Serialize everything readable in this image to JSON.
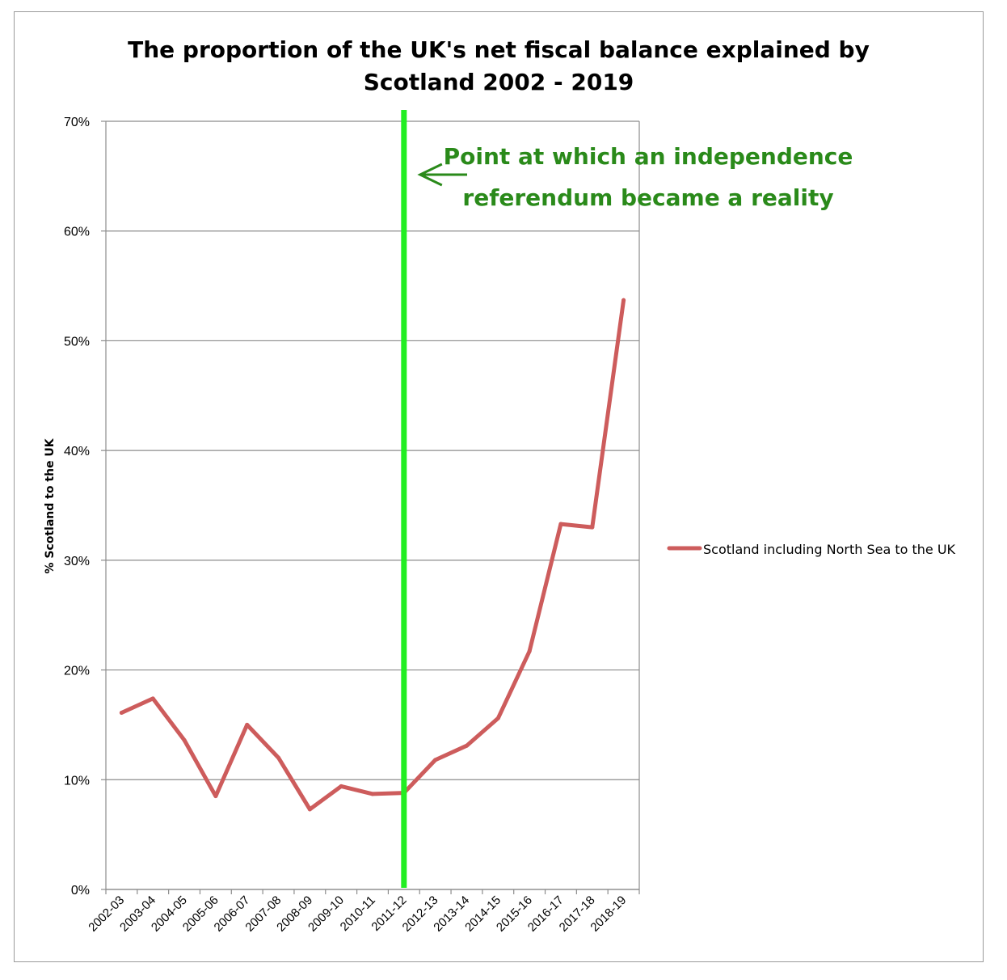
{
  "chart_data": {
    "type": "line",
    "title_lines": [
      "The proportion of the UK's net fiscal balance explained by",
      "Scotland 2002 - 2019"
    ],
    "xlabel": "",
    "ylabel": "% Scotland to the UK",
    "ylim": [
      0,
      70
    ],
    "yticks": [
      "0%",
      "10%",
      "20%",
      "30%",
      "40%",
      "50%",
      "60%",
      "70%"
    ],
    "ytick_values": [
      0,
      10,
      20,
      30,
      40,
      50,
      60,
      70
    ],
    "grid": true,
    "legend_position": "right",
    "categories": [
      "2002-03",
      "2003-04",
      "2004-05",
      "2005-06",
      "2006-07",
      "2007-08",
      "2008-09",
      "2009-10",
      "2010-11",
      "2011-12",
      "2012-13",
      "2013-14",
      "2014-15",
      "2015-16",
      "2016-17",
      "2017-18",
      "2018-19"
    ],
    "series": [
      {
        "name": "Scotland including North Sea to the UK",
        "color": "#cd5c5c",
        "values": [
          16.1,
          17.4,
          13.6,
          8.5,
          15.0,
          12.0,
          7.3,
          9.4,
          8.7,
          8.8,
          11.8,
          13.1,
          15.6,
          21.7,
          33.3,
          33.0,
          53.7
        ]
      }
    ],
    "vertical_marker": {
      "category": "2011-12",
      "color": "#22ee22"
    },
    "annotation": {
      "lines": [
        "Point at which an independence",
        "referendum became a reality"
      ],
      "color": "#2a8a1a"
    }
  }
}
